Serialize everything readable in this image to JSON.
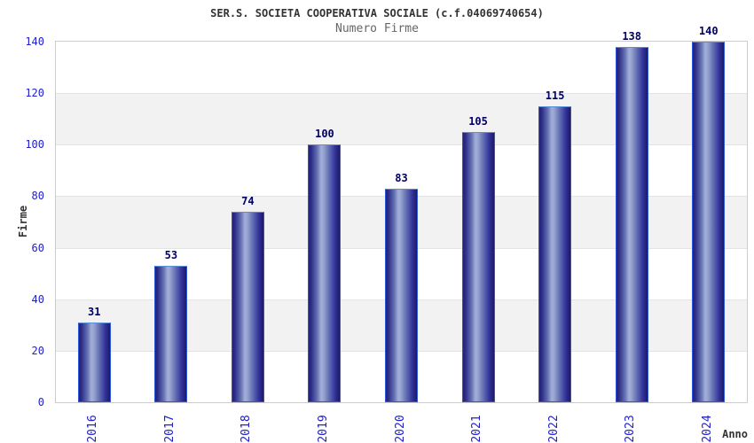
{
  "chart_data": {
    "type": "bar",
    "title": "SER.S. SOCIETA COOPERATIVA SOCIALE (c.f.04069740654)",
    "subtitle": "Numero Firme",
    "xlabel": "Anno",
    "ylabel": "Firme",
    "categories": [
      "2016",
      "2017",
      "2018",
      "2019",
      "2020",
      "2021",
      "2022",
      "2023",
      "2024"
    ],
    "values": [
      31,
      53,
      74,
      100,
      83,
      105,
      115,
      138,
      140
    ],
    "yticks": [
      0,
      20,
      40,
      60,
      80,
      100,
      120,
      140
    ],
    "ylim": [
      0,
      140
    ],
    "grid": "horizontal-bands",
    "legend": "none",
    "bar_labels_shown": true
  },
  "colors": {
    "tick_label": "#2020cc",
    "value_label": "#000066",
    "title": "#333333",
    "subtitle": "#666666",
    "axis_title": "#333333",
    "bar_edge_dark": "#23237a",
    "bar_highlight": "#a3afd8",
    "bar_border": "#2e58d8",
    "band_light": "#ffffff",
    "band_dark": "#f2f2f2",
    "grid_line": "#e3e3e3",
    "plot_border": "#cccccc"
  }
}
